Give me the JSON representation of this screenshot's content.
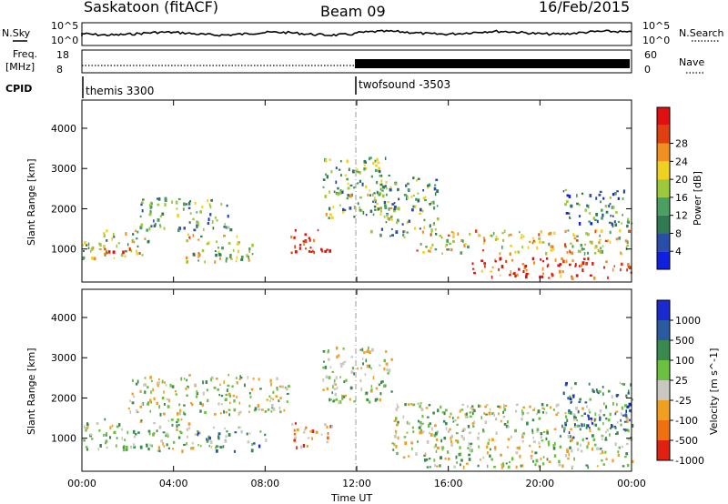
{
  "header": {
    "title": "Saskatoon (fitACF)",
    "beam": "Beam 09",
    "date": "16/Feb/2015"
  },
  "nsky_panel": {
    "left_label": "N.Sky",
    "right_label": "N.Search",
    "left_ticks": [
      "10^5",
      "10^0"
    ],
    "right_ticks": [
      "10^5",
      "10^0"
    ]
  },
  "freq_panel": {
    "left_label_1": "Freq.",
    "left_label_2": "[MHz]",
    "right_label": "Nave",
    "left_ticks": [
      "18",
      "8"
    ],
    "right_ticks": [
      "60",
      "0"
    ]
  },
  "cpid_panel": {
    "label": "CPID",
    "programs": [
      {
        "name": "themis 3300",
        "start_hour": 0
      },
      {
        "name": "twofsound -3503",
        "start_hour": 12
      }
    ]
  },
  "x_axis": {
    "label": "Time UT",
    "ticks": [
      "00:00",
      "04:00",
      "08:00",
      "12:00",
      "16:00",
      "20:00",
      "00:00"
    ]
  },
  "chart_data": [
    {
      "type": "heatmap",
      "title": "Power",
      "ylabel": "Slant Range [km]",
      "xlabel": "",
      "y_ticks": [
        1000,
        2000,
        3000,
        4000
      ],
      "ylim": [
        180,
        4700
      ],
      "xlim_hours": [
        0,
        24
      ],
      "colorbar": {
        "label": "Power [dB]",
        "ticks": [
          "4",
          "8",
          "12",
          "16",
          "20",
          "24",
          "28"
        ],
        "colors": [
          "#1020e0",
          "#2a4ea8",
          "#2f7a52",
          "#4aa060",
          "#9cc83c",
          "#f0d020",
          "#f09020",
          "#e04010",
          "#e01010"
        ]
      },
      "bands": [
        {
          "from": 0.0,
          "to": 3.0,
          "range_low": 800,
          "range_high": 1500,
          "level": 0.5
        },
        {
          "from": 0.8,
          "to": 2.5,
          "range_low": 900,
          "range_high": 1100,
          "level": 0.9
        },
        {
          "from": 2.5,
          "to": 6.5,
          "range_low": 1500,
          "range_high": 2300,
          "level": 0.35
        },
        {
          "from": 4.5,
          "to": 7.5,
          "range_low": 700,
          "range_high": 1400,
          "level": 0.55
        },
        {
          "from": 9.0,
          "to": 10.8,
          "range_low": 900,
          "range_high": 1500,
          "level": 0.95
        },
        {
          "from": 10.5,
          "to": 13.5,
          "range_low": 1800,
          "range_high": 3300,
          "level": 0.45
        },
        {
          "from": 12.5,
          "to": 15.5,
          "range_low": 1300,
          "range_high": 2800,
          "level": 0.4
        },
        {
          "from": 14.5,
          "to": 24.0,
          "range_low": 900,
          "range_high": 1500,
          "level": 0.6
        },
        {
          "from": 17.0,
          "to": 24.0,
          "range_low": 300,
          "range_high": 800,
          "level": 0.9
        },
        {
          "from": 21.0,
          "to": 24.0,
          "range_low": 1600,
          "range_high": 2500,
          "level": 0.3
        }
      ]
    },
    {
      "type": "heatmap",
      "title": "Velocity",
      "ylabel": "Slant Range [km]",
      "xlabel": "Time UT",
      "y_ticks": [
        1000,
        2000,
        3000,
        4000
      ],
      "ylim": [
        180,
        4700
      ],
      "xlim_hours": [
        0,
        24
      ],
      "colorbar": {
        "label": "Velocity [m s^-1]",
        "ticks": [
          "1000",
          "500",
          "100",
          "25",
          "-25",
          "-100",
          "-500",
          "-1000"
        ],
        "colors": [
          "#1a2ad0",
          "#2a5aa0",
          "#3a8a50",
          "#6cc040",
          "#c8c8c0",
          "#f0a020",
          "#f07010",
          "#e02010"
        ]
      },
      "bands": [
        {
          "from": 0.0,
          "to": 5.0,
          "range_low": 700,
          "range_high": 1500,
          "level": 0.5
        },
        {
          "from": 2.0,
          "to": 9.0,
          "range_low": 1600,
          "range_high": 2600,
          "level": 0.5
        },
        {
          "from": 5.0,
          "to": 8.0,
          "range_low": 700,
          "range_high": 1300,
          "level": 0.35
        },
        {
          "from": 9.0,
          "to": 11.0,
          "range_low": 800,
          "range_high": 1400,
          "level": 0.75
        },
        {
          "from": 10.5,
          "to": 13.5,
          "range_low": 1900,
          "range_high": 3300,
          "level": 0.5
        },
        {
          "from": 13.5,
          "to": 24.0,
          "range_low": 300,
          "range_high": 1900,
          "level": 0.5
        },
        {
          "from": 21.0,
          "to": 24.0,
          "range_low": 1000,
          "range_high": 2400,
          "level": 0.3
        }
      ]
    }
  ]
}
